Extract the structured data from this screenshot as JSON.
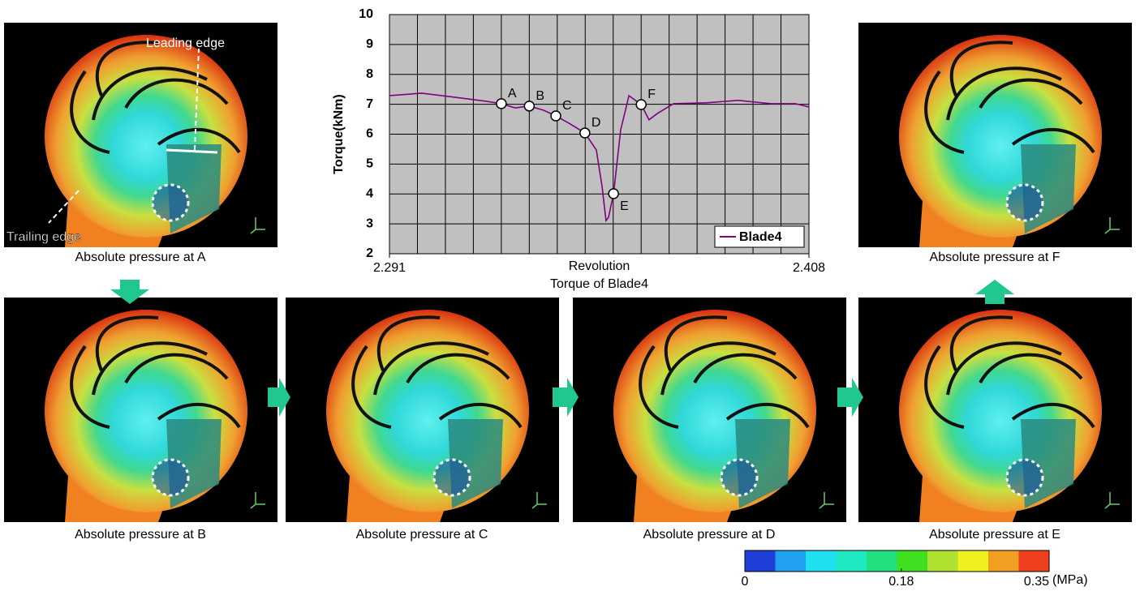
{
  "chart_data": {
    "type": "line",
    "title": "Torque of Blade4",
    "x_label": "Revolution",
    "y_label": "Torque(kNm)",
    "xlim": [
      2.291,
      2.408
    ],
    "xticks": [
      2.291,
      2.408
    ],
    "ylim": [
      2,
      10
    ],
    "yticks": [
      2,
      3,
      4,
      5,
      6,
      7,
      8,
      9,
      10
    ],
    "grid": true,
    "background": "#c0c0c0",
    "legend": "lower right",
    "series": [
      {
        "name": "Blade4",
        "color": "#800080",
        "x": [
          2.291,
          2.3,
          2.309,
          2.318,
          2.3222,
          2.326,
          2.33,
          2.334,
          2.3374,
          2.341,
          2.3455,
          2.3487,
          2.3503,
          2.3514,
          2.3521,
          2.3535,
          2.3555,
          2.3578,
          2.3612,
          2.3634,
          2.3657,
          2.3702,
          2.3793,
          2.3883,
          2.3974,
          2.4042,
          2.408
        ],
        "values": [
          7.29,
          7.37,
          7.24,
          7.1,
          7.02,
          6.88,
          6.94,
          6.8,
          6.61,
          6.37,
          6.04,
          5.47,
          4.25,
          3.11,
          3.22,
          4.01,
          6.15,
          7.29,
          6.99,
          6.48,
          6.69,
          7.02,
          7.05,
          7.13,
          7.02,
          7.02,
          6.91
        ]
      }
    ],
    "points": [
      {
        "label": "A",
        "x": 2.3222,
        "y": 7.02
      },
      {
        "label": "B",
        "x": 2.33,
        "y": 6.94
      },
      {
        "label": "C",
        "x": 2.3374,
        "y": 6.61
      },
      {
        "label": "D",
        "x": 2.3455,
        "y": 6.04
      },
      {
        "label": "E",
        "x": 2.3535,
        "y": 4.01
      },
      {
        "label": "F",
        "x": 2.3612,
        "y": 6.99
      }
    ]
  },
  "panels": [
    {
      "caption": "Absolute pressure at A"
    },
    {
      "caption": "Absolute pressure at B"
    },
    {
      "caption": "Absolute pressure at C"
    },
    {
      "caption": "Absolute pressure at D"
    },
    {
      "caption": "Absolute pressure at E"
    },
    {
      "caption": "Absolute pressure at F"
    }
  ],
  "annotations": {
    "leading_edge": "Leading edge",
    "trailing_edge": "Trailing edge"
  },
  "colorbar": {
    "colors": [
      "#1f3fd8",
      "#1fa0f0",
      "#20e0f0",
      "#20e8c0",
      "#20e080",
      "#40e020",
      "#b0e030",
      "#f0f020",
      "#f0a020",
      "#f04020"
    ],
    "lim": [
      0,
      0.35
    ],
    "ticks": [
      0,
      0.18,
      0.35
    ],
    "unit": "(MPa)"
  }
}
